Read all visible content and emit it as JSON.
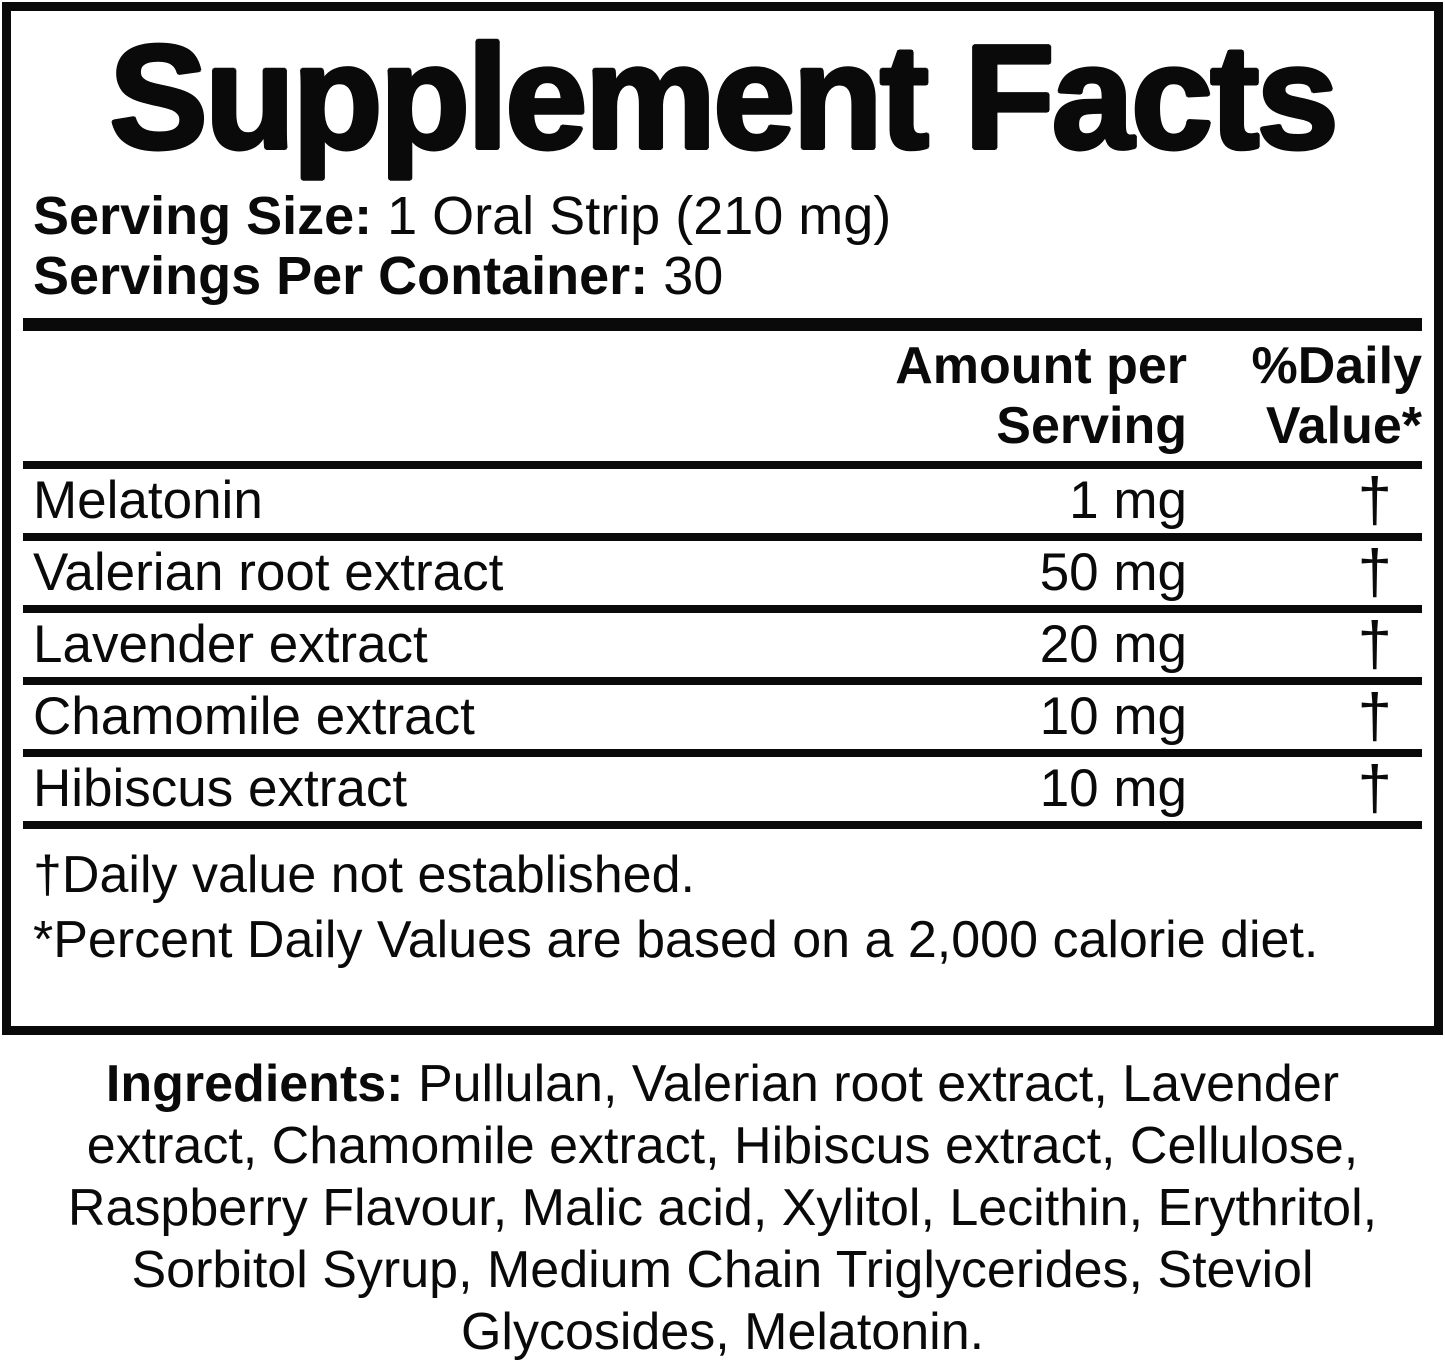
{
  "label": {
    "title": "Supplement Facts",
    "serving_size": {
      "label": "Serving Size:",
      "value": "1 Oral Strip (210 mg)"
    },
    "servings_per_container": {
      "label": "Servings Per Container:",
      "value": "30"
    },
    "columns": {
      "amount_line1": "Amount per",
      "amount_line2": "Serving",
      "dv_line1": "%Daily",
      "dv_line2": "Value*"
    },
    "rows": [
      {
        "name": "Melatonin",
        "amount": "1 mg",
        "daily_value": "†"
      },
      {
        "name": "Valerian root extract",
        "amount": "50 mg",
        "daily_value": "†"
      },
      {
        "name": "Lavender extract",
        "amount": "20 mg",
        "daily_value": "†"
      },
      {
        "name": "Chamomile extract",
        "amount": "10 mg",
        "daily_value": "†"
      },
      {
        "name": "Hibiscus extract",
        "amount": "10 mg",
        "daily_value": "†"
      }
    ],
    "footnotes": {
      "line1": "†Daily value not established.",
      "line2": "*Percent Daily Values are based on a 2,000 calorie diet."
    }
  },
  "ingredients": {
    "label": "Ingredients:",
    "text": "Pullulan, Valerian root extract, Lavender extract, Chamomile extract, Hibiscus extract, Cellulose, Raspberry Flavour, Malic acid, Xylitol, Lecithin, Erythritol, Sorbitol Syrup, Medium Chain Triglycerides, Steviol Glycosides, Melatonin."
  },
  "colors": {
    "text": "#0a0a0a",
    "background": "#ffffff"
  }
}
